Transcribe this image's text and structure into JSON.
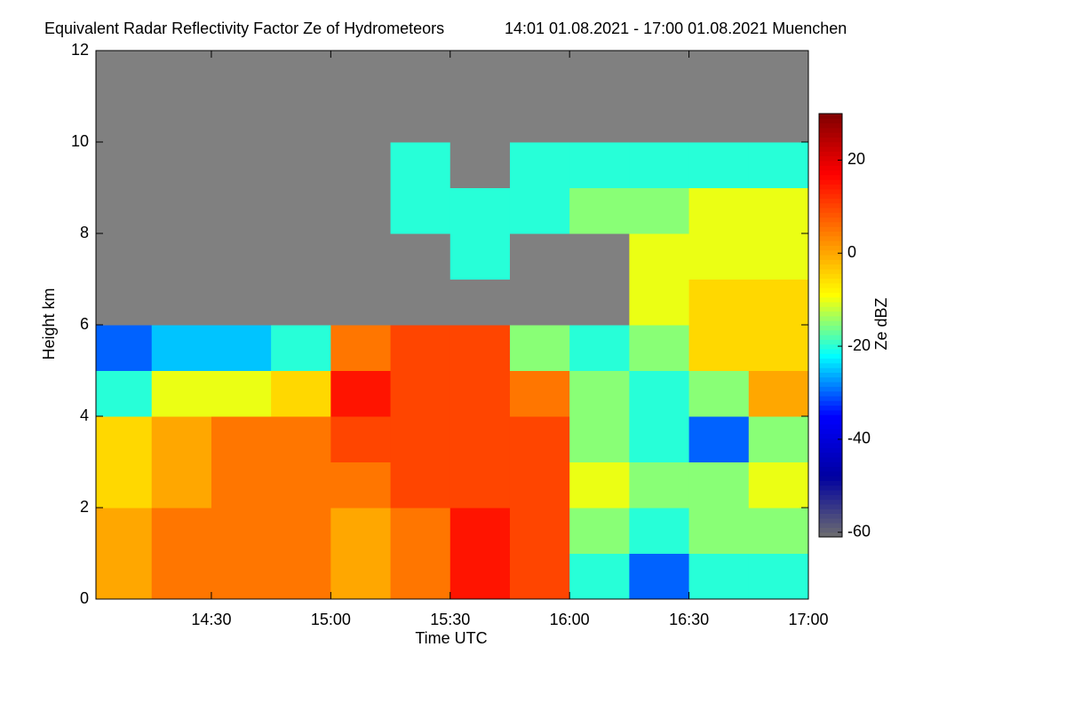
{
  "chart_data": {
    "type": "heatmap",
    "title": "Equivalent Radar Reflectivity Factor Ze of Hydrometeors",
    "subtitle": "14:01 01.08.2021 - 17:00 01.08.2021 Muenchen",
    "x_label": "Time UTC",
    "y_label": "Height km",
    "colorbar_label": "Ze dBZ",
    "xlim": [
      841,
      1020
    ],
    "xticks": [
      {
        "value": 870,
        "label": "14:30"
      },
      {
        "value": 900,
        "label": "15:00"
      },
      {
        "value": 930,
        "label": "15:30"
      },
      {
        "value": 960,
        "label": "16:00"
      },
      {
        "value": 990,
        "label": "16:30"
      },
      {
        "value": 1020,
        "label": "17:00"
      }
    ],
    "ylim": [
      0,
      12
    ],
    "yticks": [
      0,
      2,
      4,
      6,
      8,
      10,
      12
    ],
    "x": [
      841,
      855,
      870,
      885,
      900,
      915,
      930,
      945,
      960,
      975,
      990,
      1005,
      1020
    ],
    "y": [
      0,
      1,
      2,
      3,
      4,
      5,
      6,
      7,
      8,
      9,
      10,
      11,
      12
    ],
    "z": [
      [
        0,
        5,
        5,
        5,
        0,
        5,
        15,
        10,
        -20,
        -30,
        -20,
        -20
      ],
      [
        0,
        5,
        5,
        5,
        0,
        5,
        15,
        10,
        -15,
        -20,
        -15,
        -15
      ],
      [
        -5,
        0,
        5,
        5,
        5,
        10,
        10,
        10,
        -10,
        -15,
        -15,
        -10
      ],
      [
        -5,
        0,
        5,
        5,
        10,
        10,
        10,
        10,
        -15,
        -20,
        -30,
        -15
      ],
      [
        -20,
        -10,
        -10,
        -5,
        15,
        10,
        10,
        5,
        -15,
        -20,
        -15,
        0
      ],
      [
        -30,
        -25,
        -25,
        -20,
        5,
        10,
        10,
        -15,
        -20,
        -15,
        -5,
        -5
      ],
      [
        null,
        null,
        null,
        null,
        null,
        null,
        null,
        null,
        null,
        -10,
        -5,
        -5
      ],
      [
        null,
        null,
        null,
        null,
        null,
        null,
        -20,
        null,
        null,
        -10,
        -10,
        -10
      ],
      [
        null,
        null,
        null,
        null,
        null,
        -20,
        -20,
        -20,
        -15,
        -15,
        -10,
        -10
      ],
      [
        null,
        null,
        null,
        null,
        null,
        -20,
        null,
        -20,
        -20,
        -20,
        -20,
        -20
      ],
      [
        null,
        null,
        null,
        null,
        null,
        null,
        null,
        null,
        null,
        null,
        null,
        null
      ],
      [
        null,
        null,
        null,
        null,
        null,
        null,
        null,
        null,
        null,
        null,
        null,
        null
      ]
    ],
    "clim": [
      -61,
      30
    ],
    "cticks": [
      -60,
      -40,
      -20,
      0,
      20
    ],
    "colormap": [
      "#6e6e6e",
      "#0000a0",
      "#0000ff",
      "#00ffff",
      "#ffff00",
      "#ff8000",
      "#ff0000",
      "#800000"
    ],
    "nodata_color": "#808080"
  }
}
